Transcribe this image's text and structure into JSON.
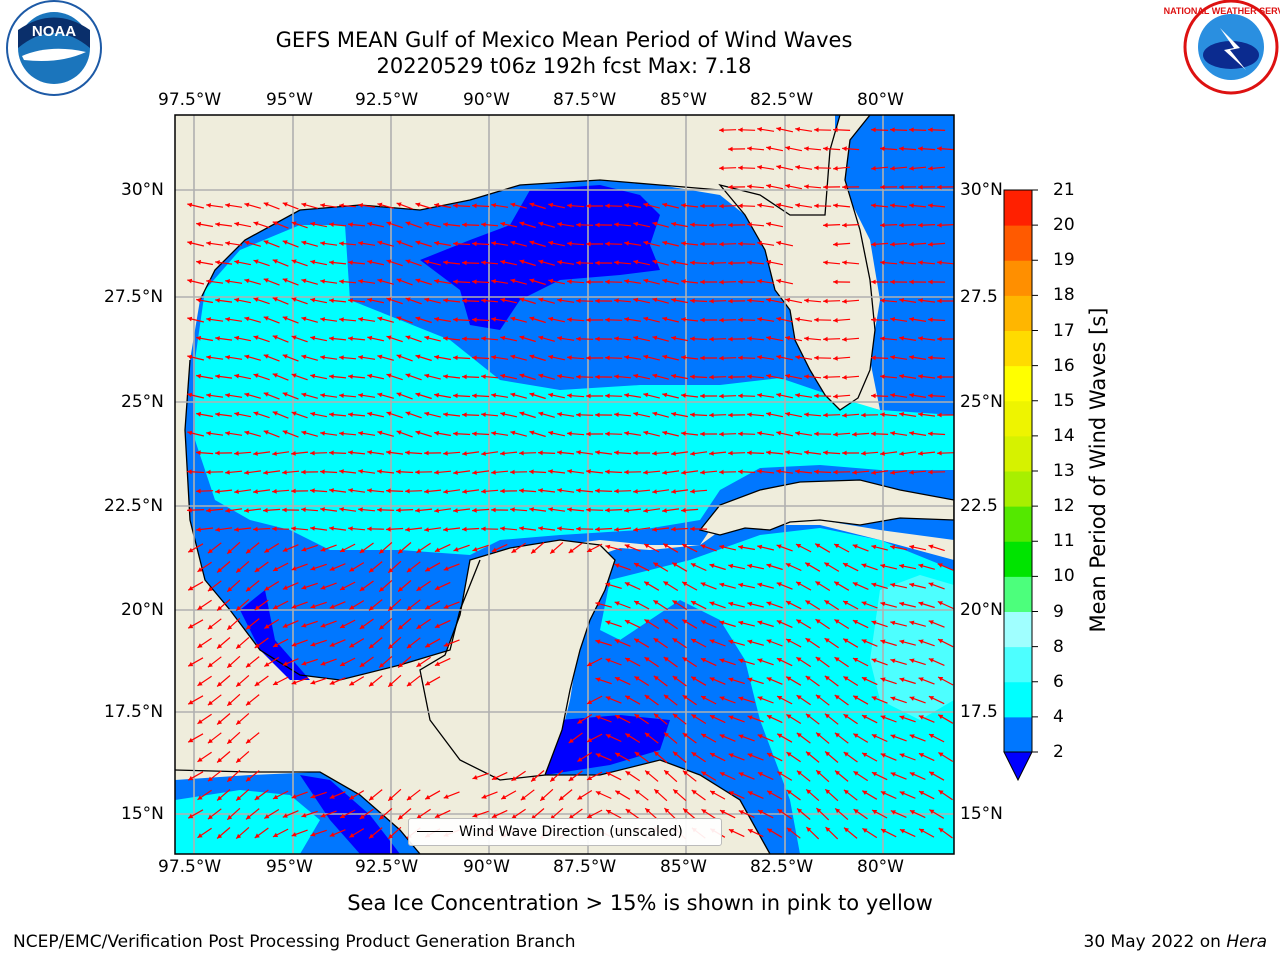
{
  "header": {
    "title_line1": "GEFS MEAN Gulf of Mexico Mean Period of Wind Waves",
    "title_line2": "20220529 t06z 192h fcst   Max: 7.18"
  },
  "logos": {
    "left": "NOAA",
    "right": "NATIONAL WEATHER SERVICE"
  },
  "map": {
    "lon_ticks": [
      "97.5°W",
      "95°W",
      "92.5°W",
      "90°W",
      "87.5°W",
      "85°W",
      "82.5°W",
      "80°W"
    ],
    "lat_ticks": [
      "30°N",
      "27.5°N",
      "25°N",
      "22.5°N",
      "20°N",
      "17.5°N",
      "15°N"
    ],
    "lat_ticks_right": [
      "30°N",
      "27.5",
      "25°N",
      "22.5",
      "20°N",
      "17.5",
      "15°N"
    ],
    "lon_range": [
      -98,
      -78.5
    ],
    "lat_range": [
      14,
      31.5
    ],
    "legend_label": "Wind Wave Direction (unscaled)",
    "arrow_color": "#ff0000",
    "land_color": "#efeddc"
  },
  "colorbar": {
    "label": "Mean Period of Wind Waves [s]",
    "ticks": [
      "2",
      "4",
      "6",
      "8",
      "9",
      "10",
      "11",
      "12",
      "13",
      "14",
      "15",
      "16",
      "17",
      "18",
      "19",
      "20",
      "21"
    ],
    "colors": [
      "#0077ff",
      "#00ffff",
      "#4dffff",
      "#a0ffff",
      "#4cff7c",
      "#00e400",
      "#54e800",
      "#a8ef00",
      "#d6f200",
      "#eef400",
      "#ffff00",
      "#ffdb00",
      "#ffb600",
      "#ff8f00",
      "#ff5a00",
      "#ff2000"
    ],
    "under_color": "#0000ff"
  },
  "footer": {
    "caption": "Sea Ice Concentration > 15% is shown in pink to yellow",
    "credit_left": "NCEP/EMC/Verification Post Processing Product Generation Branch",
    "credit_right_date": "30 May 2022 on ",
    "credit_right_host": "Hera"
  }
}
